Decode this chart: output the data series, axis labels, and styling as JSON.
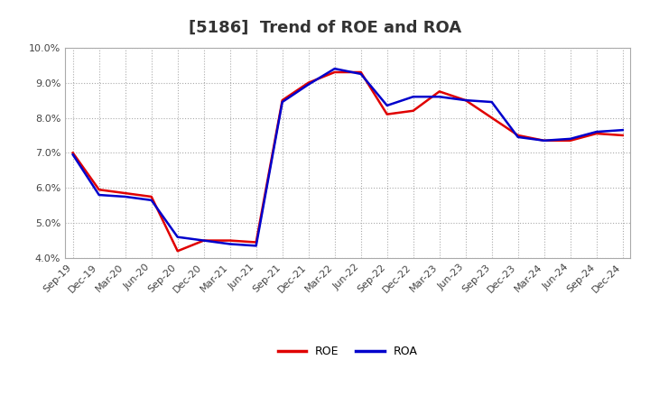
{
  "title": "[5186]  Trend of ROE and ROA",
  "labels": [
    "Sep-19",
    "Dec-19",
    "Mar-20",
    "Jun-20",
    "Sep-20",
    "Dec-20",
    "Mar-21",
    "Jun-21",
    "Sep-21",
    "Dec-21",
    "Mar-22",
    "Jun-22",
    "Sep-22",
    "Dec-22",
    "Mar-23",
    "Jun-23",
    "Sep-23",
    "Dec-23",
    "Mar-24",
    "Jun-24",
    "Sep-24",
    "Dec-24"
  ],
  "ROE": [
    7.0,
    5.95,
    5.85,
    5.75,
    4.2,
    4.5,
    4.5,
    4.45,
    8.5,
    9.0,
    9.3,
    9.3,
    8.1,
    8.2,
    8.75,
    8.5,
    8.0,
    7.5,
    7.35,
    7.35,
    7.55,
    7.5
  ],
  "ROA": [
    6.95,
    5.8,
    5.75,
    5.65,
    4.6,
    4.5,
    4.4,
    4.35,
    8.45,
    8.95,
    9.4,
    9.25,
    8.35,
    8.6,
    8.6,
    8.5,
    8.45,
    7.45,
    7.35,
    7.4,
    7.6,
    7.65
  ],
  "ROE_color": "#e00000",
  "ROA_color": "#0000cc",
  "background_color": "#ffffff",
  "plot_bg_color": "#ffffff",
  "ylim": [
    4.0,
    10.0
  ],
  "yticks": [
    4.0,
    5.0,
    6.0,
    7.0,
    8.0,
    9.0,
    10.0
  ],
  "grid_color": "#aaaaaa",
  "line_width": 1.8,
  "title_fontsize": 13,
  "tick_fontsize": 8,
  "legend_fontsize": 9
}
